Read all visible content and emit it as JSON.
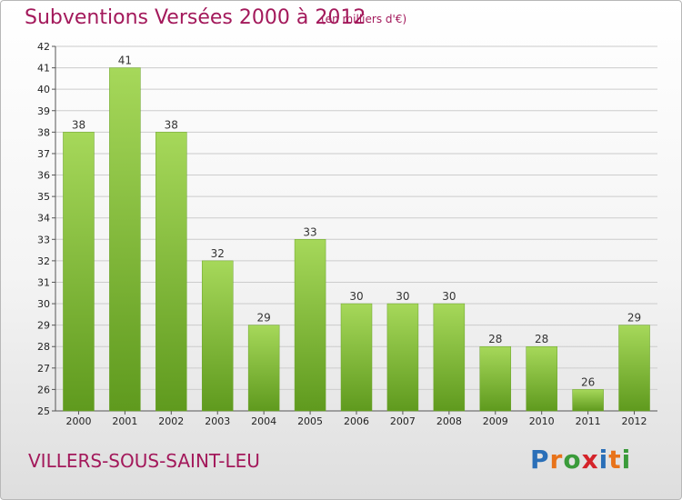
{
  "header": {
    "title": "Subventions Versées 2000 à 2012",
    "subtitle": "(en milliers d'€)"
  },
  "footer": {
    "commune": "VILLERS-SOUS-SAINT-LEU",
    "logo_text": "Proxiti",
    "logo_colors": [
      "#2a6fb8",
      "#e8731a",
      "#3a9b3a",
      "#d4232a",
      "#2a6fb8",
      "#e8731a",
      "#3a9b3a"
    ]
  },
  "colors": {
    "title": "#a3195b",
    "bar_light": "#a6d85a",
    "bar_dark": "#5f9a1e",
    "grid": "#cccccc"
  },
  "chart_data": {
    "type": "bar",
    "title": "Subventions Versées 2000 à 2012",
    "subtitle": "(en milliers d'€)",
    "categories": [
      "2000",
      "2001",
      "2002",
      "2003",
      "2004",
      "2005",
      "2006",
      "2007",
      "2008",
      "2009",
      "2010",
      "2011",
      "2012"
    ],
    "values": [
      38,
      41,
      38,
      32,
      29,
      33,
      30,
      30,
      30,
      28,
      28,
      26,
      29
    ],
    "ylim": [
      25,
      42
    ],
    "yticks": [
      25,
      26,
      27,
      28,
      29,
      30,
      31,
      32,
      33,
      34,
      35,
      36,
      37,
      38,
      39,
      40,
      41,
      42
    ],
    "grid": true,
    "xlabel": "",
    "ylabel": ""
  }
}
